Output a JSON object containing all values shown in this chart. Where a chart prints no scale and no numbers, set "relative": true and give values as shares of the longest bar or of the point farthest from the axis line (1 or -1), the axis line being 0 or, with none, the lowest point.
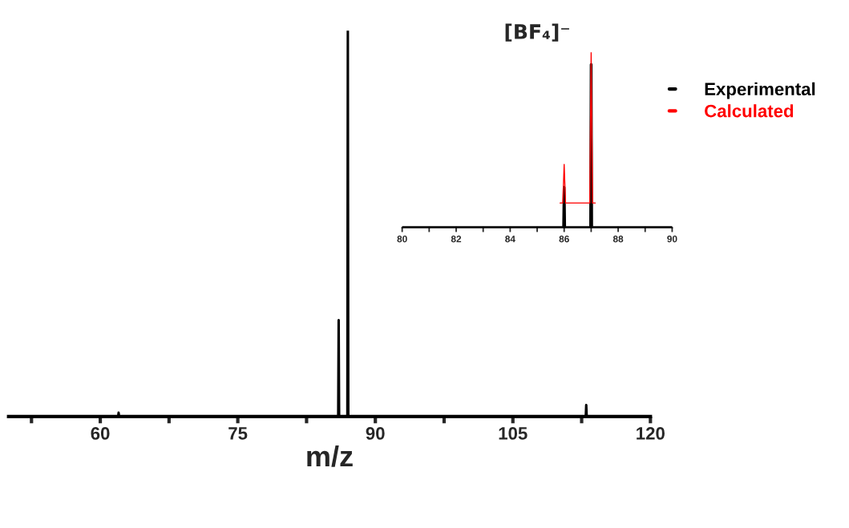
{
  "chart_data": [
    {
      "type": "line",
      "relative": true,
      "xlabel": "m/z",
      "xlim": [
        50,
        120
      ],
      "xticks": [
        {
          "value": 52.5,
          "label": null
        },
        60,
        {
          "value": 67.5,
          "label": null
        },
        75,
        {
          "value": 82.5,
          "label": null
        },
        90,
        {
          "value": 97.5,
          "label": null
        },
        105,
        {
          "value": 112.5,
          "label": null
        },
        120
      ],
      "legend": false,
      "grid": false,
      "marker": "none",
      "line_style": "solid",
      "series": [
        {
          "color": "#000000",
          "x": [
            50,
            61.95,
            62,
            62.05,
            85.95,
            86,
            86.05,
            86.95,
            87,
            87.05,
            112.95,
            113,
            113.05,
            120
          ],
          "values": [
            0,
            0,
            0.01,
            0,
            0,
            0.25,
            0,
            0,
            1,
            0,
            0,
            0.03,
            0,
            0
          ]
        }
      ]
    },
    {
      "type": "line",
      "relative": true,
      "title": "[BF₄]⁻",
      "xlim": [
        80,
        90
      ],
      "xticks": [
        80,
        {
          "value": 81,
          "label": null
        },
        82,
        {
          "value": 83,
          "label": null
        },
        84,
        {
          "value": 85,
          "label": null
        },
        86,
        {
          "value": 87,
          "label": null
        },
        88,
        {
          "value": 89,
          "label": null
        },
        90
      ],
      "legend": "right",
      "grid": false,
      "marker": "none",
      "line_style": "solid",
      "series": [
        {
          "name": "Experimental",
          "color": "#000000",
          "x": [
            80,
            85.98,
            86,
            86.02,
            86.98,
            87,
            87.02,
            90
          ],
          "values": [
            0,
            0,
            0.23,
            0,
            0,
            0.93,
            0,
            0
          ]
        },
        {
          "name": "Calculated",
          "color": "#ff0000",
          "x": [
            85.85,
            85.95,
            86,
            86.05,
            86.95,
            87,
            87.05,
            87.15
          ],
          "values": [
            0.14,
            0.14,
            0.36,
            0.14,
            0.14,
            1,
            0.14,
            0.14
          ]
        }
      ]
    }
  ]
}
